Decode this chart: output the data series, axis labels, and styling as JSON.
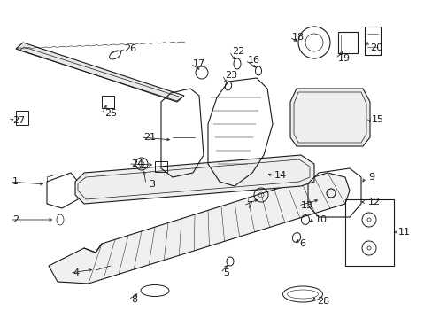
{
  "bg_color": "#ffffff",
  "line_color": "#1a1a1a",
  "fig_width": 4.89,
  "fig_height": 3.6,
  "dpi": 100,
  "font_size": 8.0
}
